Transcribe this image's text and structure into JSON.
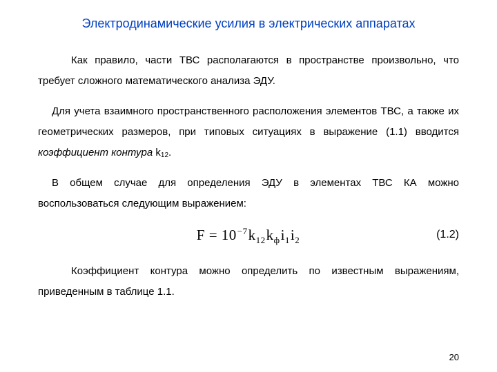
{
  "colors": {
    "title": "#0040c0",
    "text": "#000000",
    "background": "#ffffff"
  },
  "typography": {
    "body_font": "Arial",
    "body_size_pt": 11,
    "formula_font": "Times New Roman",
    "formula_size_pt": 16,
    "title_size_pt": 14,
    "line_height": 2.0
  },
  "title": "Электродинамические усилия в электрических аппаратах",
  "p1": "Как правило, части ТВС располагаются в пространстве произвольно, что требует сложного математического анализа ЭДУ.",
  "p2a": "Для учета взаимного пространственного расположения элементов ТВС, а также их геометрических размеров, при типовых ситуациях в выражение (1.1) вводится ",
  "p2_italic": "коэффициент контура",
  "p2_k": " k",
  "p2_sub": "12",
  "p2_end": ".",
  "p3": "В общем случае для определения ЭДУ в элементах ТВС КА можно воспользоваться следующим выражением:",
  "formula": {
    "F": "F",
    "eq": " = ",
    "ten": "10",
    "exp": "−7",
    "k": "k",
    "k_sub": "12",
    "kphi": "k",
    "phi_sub": "ф",
    "i1": "i",
    "i1_sub": "1",
    "i2": "i",
    "i2_sub": "2"
  },
  "eq_number": "(1.2)",
  "p4": "Коэффициент контура можно определить по известным выражениям, приведенным в таблице 1.1.",
  "page_number": "20"
}
